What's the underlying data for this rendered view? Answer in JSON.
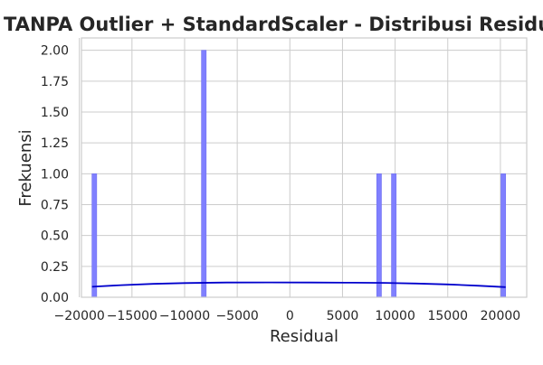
{
  "chart_data": {
    "type": "bar",
    "title": "TANPA Outlier + StandardScaler - Distribusi Residual",
    "xlabel": "Residual",
    "ylabel": "Frekuensi",
    "xlim": [
      -19800,
      22500
    ],
    "ylim": [
      0,
      2.1
    ],
    "grid": true,
    "colors": {
      "bar_fill": "#8080ff",
      "bar_edge": "#7070f0",
      "kde_line": "#0000cc",
      "grid": "#cccccc",
      "axes_edge": "#cccccc",
      "text": "#262626"
    },
    "x_ticks": [
      {
        "value": -20000,
        "label": "−20000"
      },
      {
        "value": -15000,
        "label": "−15000"
      },
      {
        "value": -10000,
        "label": "−10000"
      },
      {
        "value": -5000,
        "label": "−5000"
      },
      {
        "value": 0,
        "label": "0"
      },
      {
        "value": 5000,
        "label": "5000"
      },
      {
        "value": 10000,
        "label": "10000"
      },
      {
        "value": 15000,
        "label": "15000"
      },
      {
        "value": 20000,
        "label": "20000"
      }
    ],
    "y_ticks": [
      {
        "value": 0,
        "label": "0.00"
      },
      {
        "value": 0.25,
        "label": "0.25"
      },
      {
        "value": 0.5,
        "label": "0.50"
      },
      {
        "value": 0.75,
        "label": "0.75"
      },
      {
        "value": 1.0,
        "label": "1.00"
      },
      {
        "value": 1.25,
        "label": "1.25"
      },
      {
        "value": 1.5,
        "label": "1.50"
      },
      {
        "value": 1.75,
        "label": "1.75"
      },
      {
        "value": 2.0,
        "label": "2.00"
      }
    ],
    "bars": [
      {
        "x0": -18800,
        "x1": -18350,
        "count": 1
      },
      {
        "x0": -8400,
        "x1": -7950,
        "count": 2
      },
      {
        "x0": 8250,
        "x1": 8700,
        "count": 1
      },
      {
        "x0": 9650,
        "x1": 10100,
        "count": 1
      },
      {
        "x0": 20050,
        "x1": 20500,
        "count": 1
      }
    ],
    "kde": {
      "x": [
        -18800,
        -16000,
        -13000,
        -10000,
        -6000,
        -2000,
        2000,
        6000,
        9000,
        12000,
        15000,
        18000,
        20500
      ],
      "y": [
        0.085,
        0.098,
        0.108,
        0.115,
        0.119,
        0.12,
        0.119,
        0.118,
        0.116,
        0.111,
        0.104,
        0.093,
        0.082
      ]
    }
  }
}
